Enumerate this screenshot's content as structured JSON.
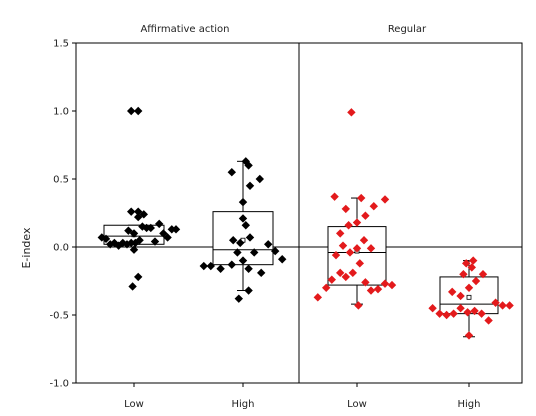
{
  "chart_data": {
    "type": "scatter",
    "ylabel": "E-index",
    "ylim": [
      -1.0,
      1.5
    ],
    "yticks": [
      -1.0,
      -0.5,
      0.0,
      0.5,
      1.0,
      1.5
    ],
    "ytick_labels": [
      "-1.0",
      "-0.5",
      "0.0",
      "0.5",
      "1.0",
      "1.5"
    ],
    "reference_line": 0.0,
    "panels": [
      {
        "title": "Affirmative action",
        "marker_color": "#000000",
        "groups": [
          {
            "label": "Low",
            "box": {
              "q1": 0.02,
              "median": 0.08,
              "q3": 0.16,
              "mean": 0.09,
              "whisker_low": 0.02,
              "whisker_high": 0.16
            },
            "points": [
              [
                -0.23,
                0.07
              ],
              [
                -0.2,
                0.06
              ],
              [
                -0.17,
                0.02
              ],
              [
                -0.14,
                0.03
              ],
              [
                -0.11,
                0.01
              ],
              [
                -0.08,
                0.03
              ],
              [
                -0.05,
                0.02
              ],
              [
                -0.02,
                0.03
              ],
              [
                0.01,
                0.03
              ],
              [
                -0.04,
                0.12
              ],
              [
                0.0,
                0.1
              ],
              [
                0.03,
                0.22
              ],
              [
                0.06,
                0.15
              ],
              [
                0.09,
                0.14
              ],
              [
                0.12,
                0.14
              ],
              [
                0.15,
                0.04
              ],
              [
                0.18,
                0.17
              ],
              [
                0.21,
                0.1
              ],
              [
                0.24,
                0.07
              ],
              [
                0.27,
                0.13
              ],
              [
                0.3,
                0.13
              ],
              [
                -0.02,
                0.26
              ],
              [
                0.03,
                0.26
              ],
              [
                0.07,
                0.24
              ],
              [
                0.04,
                0.05
              ],
              [
                0.0,
                -0.02
              ],
              [
                0.03,
                -0.22
              ],
              [
                -0.01,
                -0.29
              ],
              [
                -0.02,
                1.0
              ],
              [
                0.03,
                1.0
              ]
            ]
          },
          {
            "label": "High",
            "box": {
              "q1": -0.13,
              "median": -0.02,
              "q3": 0.26,
              "mean": 0.05,
              "whisker_low": -0.32,
              "whisker_high": 0.63
            },
            "points": [
              [
                -0.28,
                -0.14
              ],
              [
                -0.23,
                -0.14
              ],
              [
                -0.16,
                -0.16
              ],
              [
                -0.08,
                -0.13
              ],
              [
                -0.04,
                -0.04
              ],
              [
                0.0,
                -0.1
              ],
              [
                0.04,
                -0.16
              ],
              [
                0.08,
                -0.04
              ],
              [
                0.13,
                -0.19
              ],
              [
                0.18,
                0.02
              ],
              [
                0.23,
                -0.03
              ],
              [
                0.28,
                -0.09
              ],
              [
                -0.03,
                -0.38
              ],
              [
                0.04,
                -0.32
              ],
              [
                -0.07,
                0.05
              ],
              [
                -0.02,
                0.03
              ],
              [
                0.05,
                0.07
              ],
              [
                0.02,
                0.16
              ],
              [
                0.0,
                0.21
              ],
              [
                0.05,
                0.45
              ],
              [
                0.0,
                0.33
              ],
              [
                0.12,
                0.5
              ],
              [
                -0.08,
                0.55
              ],
              [
                0.04,
                0.6
              ],
              [
                0.02,
                0.63
              ]
            ]
          }
        ]
      },
      {
        "title": "Regular",
        "marker_color": "#e31a1c",
        "groups": [
          {
            "label": "Low",
            "box": {
              "q1": -0.28,
              "median": -0.04,
              "q3": 0.15,
              "mean": -0.03,
              "whisker_low": -0.42,
              "whisker_high": 0.36
            },
            "points": [
              [
                -0.28,
                -0.37
              ],
              [
                -0.22,
                -0.3
              ],
              [
                -0.18,
                -0.24
              ],
              [
                -0.12,
                -0.19
              ],
              [
                -0.08,
                -0.22
              ],
              [
                -0.03,
                -0.19
              ],
              [
                0.02,
                -0.12
              ],
              [
                0.06,
                -0.26
              ],
              [
                0.1,
                -0.32
              ],
              [
                0.15,
                -0.31
              ],
              [
                0.2,
                -0.27
              ],
              [
                0.25,
                -0.28
              ],
              [
                -0.15,
                -0.06
              ],
              [
                -0.1,
                0.01
              ],
              [
                -0.05,
                -0.04
              ],
              [
                0.0,
                -0.01
              ],
              [
                0.05,
                0.05
              ],
              [
                0.1,
                -0.01
              ],
              [
                -0.12,
                0.1
              ],
              [
                -0.06,
                0.16
              ],
              [
                0.0,
                0.18
              ],
              [
                0.06,
                0.23
              ],
              [
                -0.08,
                0.28
              ],
              [
                0.03,
                0.36
              ],
              [
                0.12,
                0.3
              ],
              [
                0.2,
                0.35
              ],
              [
                -0.16,
                0.37
              ],
              [
                0.01,
                -0.43
              ],
              [
                -0.04,
                0.99
              ]
            ]
          },
          {
            "label": "High",
            "box": {
              "q1": -0.49,
              "median": -0.42,
              "q3": -0.22,
              "mean": -0.37,
              "whisker_low": -0.66,
              "whisker_high": -0.1
            },
            "points": [
              [
                -0.26,
                -0.45
              ],
              [
                -0.21,
                -0.49
              ],
              [
                -0.16,
                -0.5
              ],
              [
                -0.11,
                -0.49
              ],
              [
                -0.06,
                -0.45
              ],
              [
                -0.01,
                -0.48
              ],
              [
                0.04,
                -0.47
              ],
              [
                0.09,
                -0.49
              ],
              [
                0.14,
                -0.54
              ],
              [
                0.19,
                -0.41
              ],
              [
                0.24,
                -0.43
              ],
              [
                0.29,
                -0.43
              ],
              [
                -0.12,
                -0.33
              ],
              [
                -0.06,
                -0.36
              ],
              [
                0.0,
                -0.3
              ],
              [
                0.05,
                -0.25
              ],
              [
                0.1,
                -0.2
              ],
              [
                -0.04,
                -0.2
              ],
              [
                0.02,
                -0.15
              ],
              [
                -0.02,
                -0.12
              ],
              [
                0.03,
                -0.1
              ],
              [
                0.0,
                -0.65
              ]
            ]
          }
        ]
      }
    ]
  }
}
